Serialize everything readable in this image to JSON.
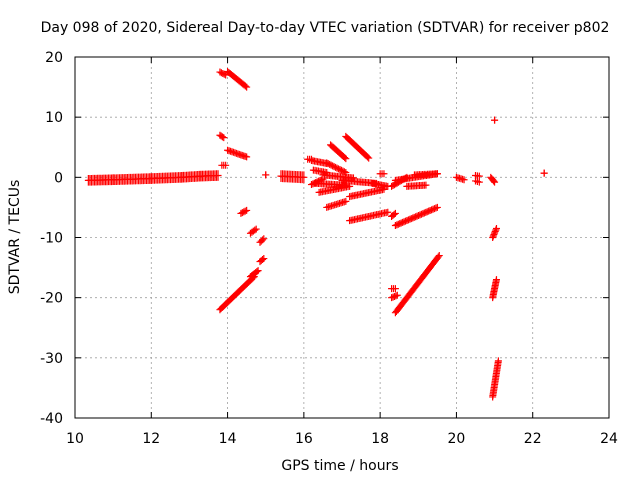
{
  "chart_data": {
    "type": "scatter",
    "title": "Day 098 of 2020, Sidereal Day-to-day VTEC variation (SDTVAR) for receiver p802",
    "xlabel": "GPS time / hours",
    "ylabel": "SDTVAR / TECUs",
    "xlim": [
      10,
      24
    ],
    "ylim": [
      -40,
      20
    ],
    "xticks": [
      "10",
      "12",
      "14",
      "16",
      "18",
      "20",
      "22",
      "24"
    ],
    "yticks": [
      "20",
      "10",
      "0",
      "-10",
      "-20",
      "-30",
      "-40"
    ],
    "grid": true,
    "marker": "+",
    "color": "#ff0000",
    "segments": [
      {
        "x": [
          10.35,
          11.0,
          12.0,
          12.8,
          13.3,
          13.75
        ],
        "y": [
          -0.5,
          -0.4,
          -0.2,
          0.0,
          0.2,
          0.3
        ],
        "width": 0.6
      },
      {
        "x": [
          13.8,
          13.9
        ],
        "y": [
          7.0,
          6.6
        ]
      },
      {
        "x": [
          13.8,
          13.95
        ],
        "y": [
          17.5,
          17.0
        ]
      },
      {
        "x": [
          14.0,
          14.5
        ],
        "y": [
          17.6,
          15.0
        ]
      },
      {
        "x": [
          13.85,
          13.95
        ],
        "y": [
          2.0,
          2.0
        ]
      },
      {
        "x": [
          14.0,
          14.5
        ],
        "y": [
          4.5,
          3.4
        ]
      },
      {
        "x": [
          14.35,
          14.5
        ],
        "y": [
          -6.0,
          -5.5
        ]
      },
      {
        "x": [
          14.6,
          14.75
        ],
        "y": [
          -9.3,
          -8.6
        ]
      },
      {
        "x": [
          14.85,
          14.95
        ],
        "y": [
          -10.8,
          -10.2
        ]
      },
      {
        "x": [
          14.85,
          14.95
        ],
        "y": [
          -14.0,
          -13.5
        ]
      },
      {
        "x": [
          13.8,
          14.7
        ],
        "y": [
          -22.0,
          -16.5
        ]
      },
      {
        "x": [
          14.6,
          14.8
        ],
        "y": [
          -16.5,
          -15.5
        ]
      },
      {
        "x": [
          15.0,
          15.0
        ],
        "y": [
          0.4,
          0.4
        ]
      },
      {
        "x": [
          15.4,
          16.0
        ],
        "y": [
          0.2,
          0.0
        ],
        "width": 0.8
      },
      {
        "x": [
          16.2,
          16.6
        ],
        "y": [
          2.8,
          2.3
        ]
      },
      {
        "x": [
          16.1,
          16.2
        ],
        "y": [
          3.0,
          3.0
        ]
      },
      {
        "x": [
          16.25,
          16.6
        ],
        "y": [
          1.2,
          0.8
        ]
      },
      {
        "x": [
          16.2,
          16.5
        ],
        "y": [
          -1.2,
          -0.3
        ]
      },
      {
        "x": [
          16.6,
          17.1
        ],
        "y": [
          2.4,
          0.8
        ]
      },
      {
        "x": [
          16.7,
          17.1
        ],
        "y": [
          5.4,
          3.1
        ]
      },
      {
        "x": [
          16.5,
          17.3
        ],
        "y": [
          0.4,
          -0.1
        ]
      },
      {
        "x": [
          16.3,
          17.1
        ],
        "y": [
          -1.0,
          -1.3
        ]
      },
      {
        "x": [
          16.4,
          17.2
        ],
        "y": [
          -2.5,
          -1.5
        ]
      },
      {
        "x": [
          16.6,
          17.1
        ],
        "y": [
          -5.0,
          -4.0
        ]
      },
      {
        "x": [
          17.1,
          17.7
        ],
        "y": [
          6.8,
          3.2
        ]
      },
      {
        "x": [
          17.0,
          17.9
        ],
        "y": [
          -0.5,
          -1.0
        ]
      },
      {
        "x": [
          17.2,
          18.1
        ],
        "y": [
          -3.2,
          -2.0
        ]
      },
      {
        "x": [
          17.8,
          18.2
        ],
        "y": [
          -1.0,
          -1.5
        ]
      },
      {
        "x": [
          17.2,
          18.2
        ],
        "y": [
          -7.2,
          -5.8
        ]
      },
      {
        "x": [
          18.3,
          18.4
        ],
        "y": [
          -6.5,
          -6.0
        ]
      },
      {
        "x": [
          18.0,
          18.1
        ],
        "y": [
          0.6,
          0.6
        ]
      },
      {
        "x": [
          18.3,
          18.7
        ],
        "y": [
          -1.5,
          0.0
        ]
      },
      {
        "x": [
          18.4,
          19.5
        ],
        "y": [
          -0.5,
          0.6
        ]
      },
      {
        "x": [
          18.9,
          19.5
        ],
        "y": [
          0.4,
          0.6
        ]
      },
      {
        "x": [
          18.7,
          19.2
        ],
        "y": [
          -1.5,
          -1.3
        ]
      },
      {
        "x": [
          18.4,
          19.5
        ],
        "y": [
          -8.0,
          -5.0
        ]
      },
      {
        "x": [
          18.3,
          18.4
        ],
        "y": [
          -18.5,
          -18.5
        ]
      },
      {
        "x": [
          18.3,
          18.45
        ],
        "y": [
          -20.0,
          -19.6
        ]
      },
      {
        "x": [
          18.4,
          19.55
        ],
        "y": [
          -22.5,
          -13.0
        ]
      },
      {
        "x": [
          20.0,
          20.2
        ],
        "y": [
          0.0,
          -0.4
        ]
      },
      {
        "x": [
          20.5,
          20.6
        ],
        "y": [
          0.3,
          0.2
        ]
      },
      {
        "x": [
          20.5,
          20.6
        ],
        "y": [
          -0.6,
          -0.8
        ]
      },
      {
        "x": [
          20.9,
          21.0
        ],
        "y": [
          0.0,
          -0.8
        ]
      },
      {
        "x": [
          20.95,
          21.05
        ],
        "y": [
          -10.0,
          -8.5
        ]
      },
      {
        "x": [
          20.95,
          21.05
        ],
        "y": [
          -20.0,
          -17.0
        ]
      },
      {
        "x": [
          20.95,
          21.1
        ],
        "y": [
          -36.5,
          -30.5
        ]
      },
      {
        "x": [
          21.0,
          21.0
        ],
        "y": [
          9.5,
          9.5
        ]
      },
      {
        "x": [
          22.3,
          22.3
        ],
        "y": [
          0.7,
          0.7
        ]
      }
    ]
  }
}
